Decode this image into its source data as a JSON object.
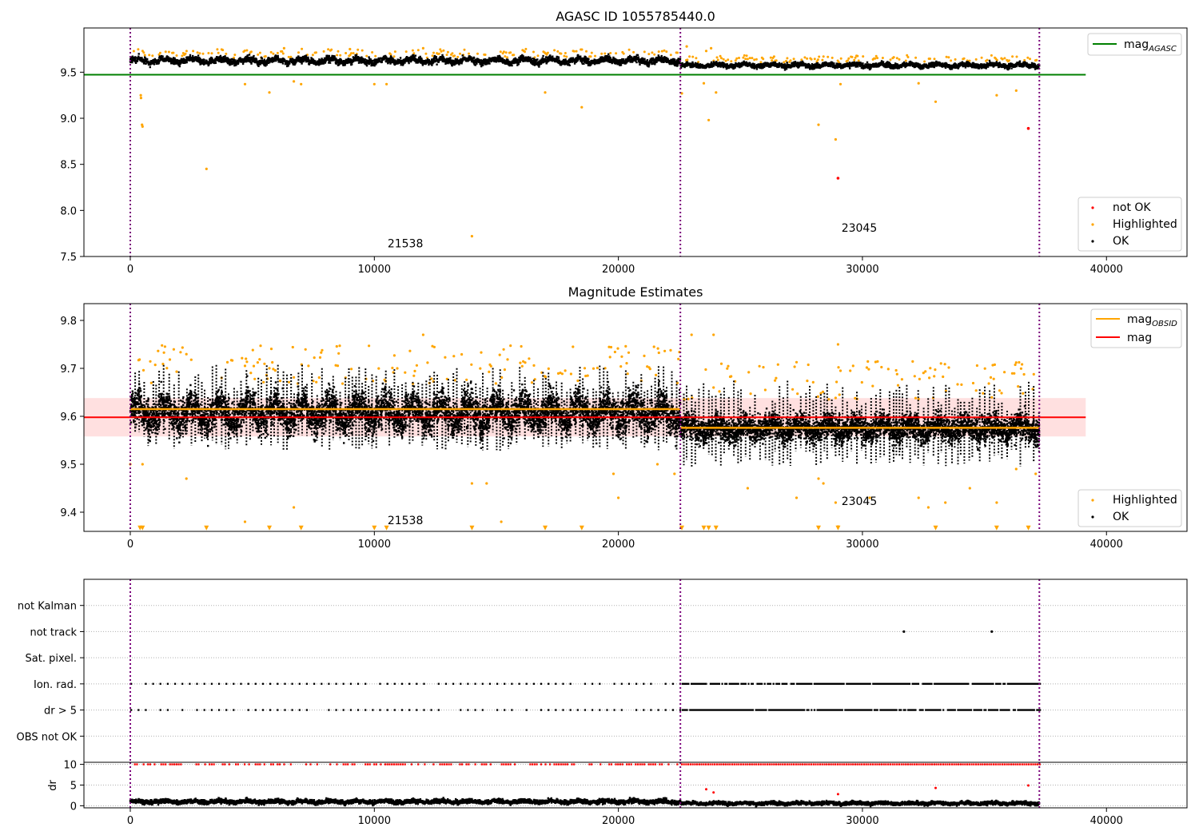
{
  "chart_data": [
    {
      "id": "agasc",
      "type": "scatter",
      "title": "AGASC ID 1055785440.0",
      "xlim": [
        -1900,
        43300
      ],
      "ylim": [
        7.5,
        9.98
      ],
      "xticks": [
        0,
        10000,
        20000,
        30000,
        40000
      ],
      "yticks": [
        7.5,
        8.0,
        8.5,
        9.0,
        9.5
      ],
      "ytick_labels": [
        "7.5",
        "8.0",
        "8.5",
        "9.0",
        "9.5"
      ],
      "grid": false,
      "obs_boundaries": [
        0,
        22540,
        37250
      ],
      "hlines": [
        {
          "name": "mag",
          "subscript": "AGASC",
          "y": 9.473,
          "x_range": [
            -1900,
            39150
          ],
          "color": "#008000"
        }
      ],
      "annotations": [
        {
          "text": "21538",
          "x": 11270,
          "y": 7.6
        },
        {
          "text": "23045",
          "x": 29870,
          "y": 7.77
        }
      ],
      "legend_lines": [
        {
          "name": "mag",
          "subscript": "AGASC",
          "color": "#008000"
        }
      ],
      "legend_points": [
        {
          "name": "not OK",
          "color": "#ff0000"
        },
        {
          "name": "Highlighted",
          "color": "#ffa500"
        },
        {
          "name": "OK",
          "color": "#000000"
        }
      ],
      "bands": [
        {
          "x_range": [
            0,
            22540
          ],
          "mean": 9.625,
          "spread": 0.032,
          "wobble": 0.02,
          "color": "#000000"
        },
        {
          "x_range": [
            22540,
            37250
          ],
          "mean": 9.575,
          "spread": 0.025,
          "wobble": 0.012,
          "color": "#000000"
        }
      ],
      "highlighted_points": [
        [
          430,
          9.25
        ],
        [
          440,
          9.22
        ],
        [
          480,
          8.93
        ],
        [
          500,
          8.91
        ],
        [
          3120,
          8.45
        ],
        [
          4700,
          9.37
        ],
        [
          5700,
          9.28
        ],
        [
          6700,
          9.4
        ],
        [
          7000,
          9.37
        ],
        [
          10000,
          9.37
        ],
        [
          10500,
          9.37
        ],
        [
          17000,
          9.28
        ],
        [
          18500,
          9.12
        ],
        [
          14000,
          7.72
        ],
        [
          22600,
          9.27
        ],
        [
          23500,
          9.38
        ],
        [
          23700,
          8.98
        ],
        [
          24000,
          9.28
        ],
        [
          28200,
          8.93
        ],
        [
          29100,
          9.37
        ],
        [
          28900,
          8.77
        ],
        [
          32300,
          9.38
        ],
        [
          33000,
          9.18
        ],
        [
          35500,
          9.25
        ],
        [
          36300,
          9.3
        ],
        [
          22800,
          9.78
        ],
        [
          23600,
          9.73
        ],
        [
          23800,
          9.76
        ],
        [
          9000,
          9.75
        ],
        [
          12000,
          9.76
        ],
        [
          6300,
          9.76
        ]
      ],
      "not_ok_points": [
        [
          29000,
          8.35
        ],
        [
          36800,
          8.89
        ]
      ]
    },
    {
      "id": "estimates",
      "type": "scatter",
      "title": "Magnitude Estimates",
      "xlim": [
        -1900,
        43300
      ],
      "ylim": [
        9.36,
        9.835
      ],
      "xticks": [
        0,
        10000,
        20000,
        30000,
        40000
      ],
      "yticks": [
        9.4,
        9.5,
        9.6,
        9.7,
        9.8
      ],
      "ytick_labels": [
        "9.4",
        "9.5",
        "9.6",
        "9.7",
        "9.8"
      ],
      "grid": false,
      "obs_boundaries": [
        0,
        22540,
        37250
      ],
      "hlines": [
        {
          "name": "mag",
          "y": 9.598,
          "x_range": [
            -1900,
            39150
          ],
          "color": "#ff0000"
        }
      ],
      "segments": [
        {
          "name": "mag",
          "subscript": "OBSID",
          "y": 9.615,
          "x_range": [
            0,
            22540
          ],
          "color": "#ffa500"
        },
        {
          "name": "mag",
          "subscript": "OBSID",
          "y": 9.576,
          "x_range": [
            22540,
            37250
          ],
          "color": "#ffa500"
        }
      ],
      "shaded_band": {
        "y_range": [
          9.558,
          9.638
        ],
        "x_range": [
          -1900,
          39150
        ],
        "color": "#ffcccc"
      },
      "annotations": [
        {
          "text": "21538",
          "x": 11270,
          "y": 9.375
        },
        {
          "text": "23045",
          "x": 29870,
          "y": 9.415
        }
      ],
      "legend_lines": [
        {
          "name": "mag",
          "subscript": "OBSID",
          "color": "#ffa500"
        },
        {
          "name": "mag",
          "color": "#ff0000"
        }
      ],
      "legend_points": [
        {
          "name": "Highlighted",
          "color": "#ffa500"
        },
        {
          "name": "OK",
          "color": "#000000"
        }
      ],
      "bands": [
        {
          "x_range": [
            0,
            22540
          ],
          "mean": 9.608,
          "spread": 0.032,
          "wobble": 0.018,
          "color": "#000000"
        },
        {
          "x_range": [
            22540,
            37250
          ],
          "mean": 9.575,
          "spread": 0.025,
          "wobble": 0.01,
          "color": "#000000"
        }
      ],
      "low_markers_y": 9.367,
      "low_markers_x": [
        400,
        500,
        3120,
        5700,
        7000,
        10000,
        10500,
        14000,
        17000,
        18500,
        22600,
        23500,
        23700,
        24000,
        28200,
        29000,
        33000,
        35500,
        36800
      ],
      "highlighted_points": [
        [
          2300,
          9.47
        ],
        [
          4700,
          9.38
        ],
        [
          6700,
          9.41
        ],
        [
          15200,
          9.38
        ],
        [
          14000,
          9.46
        ],
        [
          14600,
          9.46
        ],
        [
          20000,
          9.43
        ],
        [
          19800,
          9.48
        ],
        [
          21600,
          9.5
        ],
        [
          22300,
          9.48
        ],
        [
          25300,
          9.45
        ],
        [
          27300,
          9.43
        ],
        [
          28900,
          9.42
        ],
        [
          29000,
          9.37
        ],
        [
          28200,
          9.47
        ],
        [
          28400,
          9.46
        ],
        [
          30300,
          9.43
        ],
        [
          32300,
          9.43
        ],
        [
          32700,
          9.41
        ],
        [
          33400,
          9.42
        ],
        [
          34400,
          9.45
        ],
        [
          35500,
          9.42
        ],
        [
          36300,
          9.49
        ],
        [
          37100,
          9.48
        ],
        [
          23000,
          9.77
        ],
        [
          23900,
          9.77
        ],
        [
          12000,
          9.77
        ],
        [
          29000,
          9.75
        ],
        [
          0,
          9.5
        ],
        [
          500,
          9.5
        ]
      ]
    },
    {
      "id": "flags",
      "type": "scatter",
      "title": "",
      "xlim": [
        -1900,
        43300
      ],
      "ylim": [
        0,
        7
      ],
      "grid": true,
      "obs_boundaries": [
        0,
        22540,
        37250
      ],
      "categories": [
        "OBS not OK",
        "dr > 5",
        "Ion. rad.",
        "Sat. pixel.",
        "not track",
        "not Kalman"
      ],
      "category_y": [
        1,
        2,
        3,
        4,
        5,
        6
      ],
      "flag_rows": [
        {
          "category": "dr > 5",
          "segments": [
            [
              0,
              22540,
              300
            ],
            [
              22540,
              37250,
              60
            ]
          ]
        },
        {
          "category": "Ion. rad.",
          "segments": [
            [
              0,
              22540,
              300
            ],
            [
              22540,
              37250,
              60
            ]
          ]
        },
        {
          "category": "not track",
          "points": [
            31700,
            35300
          ]
        }
      ]
    },
    {
      "id": "dr",
      "type": "scatter",
      "title": "",
      "ylabel": "dr",
      "xlim": [
        -1900,
        43300
      ],
      "ylim": [
        -0.5,
        10.5
      ],
      "xticks": [
        0,
        10000,
        20000,
        30000,
        40000
      ],
      "yticks": [
        0,
        5,
        10
      ],
      "ytick_labels": [
        "0",
        "5",
        "10"
      ],
      "grid": true,
      "obs_boundaries": [
        0,
        22540,
        37250
      ],
      "bands": [
        {
          "x_range": [
            0,
            22540
          ],
          "mean": 1.0,
          "spread": 0.5,
          "wobble": 0.2,
          "color": "#000000"
        },
        {
          "x_range": [
            22540,
            37250
          ],
          "mean": 0.6,
          "spread": 0.4,
          "wobble": 0.15,
          "color": "#000000"
        }
      ],
      "red_rows_y": 10,
      "red_points": [
        [
          23600,
          4.0
        ],
        [
          23900,
          3.2
        ],
        [
          29000,
          2.8
        ],
        [
          33000,
          4.3
        ],
        [
          36800,
          4.9
        ]
      ]
    }
  ]
}
